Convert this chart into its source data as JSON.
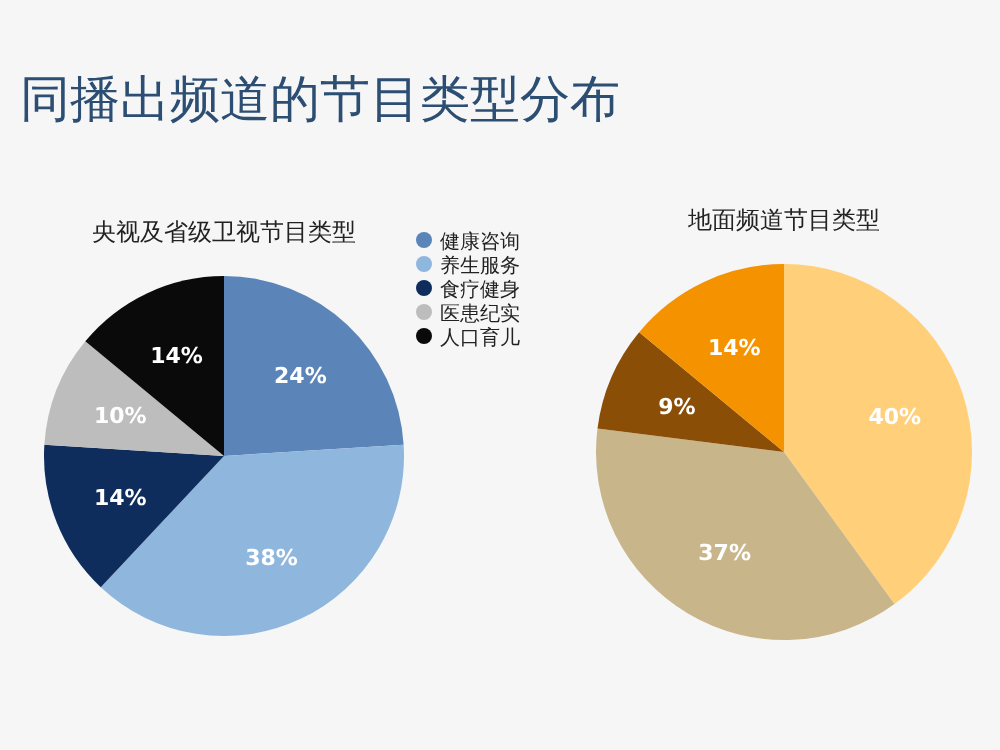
{
  "chart_data": [
    {
      "type": "pie",
      "title": "同播出频道的节目类型分布",
      "subtitle": "央视及省级卫视节目类型",
      "categories": [
        "健康咨询",
        "养生服务",
        "食疗健身",
        "医患纪实",
        "人口育儿"
      ],
      "values": [
        24,
        38,
        14,
        10,
        14
      ],
      "colors": [
        "#5b84b8",
        "#8fb6dd",
        "#0f2d5c",
        "#bdbdbd",
        "#0a0a0a"
      ],
      "value_labels": [
        "24%",
        "38%",
        "14%",
        "10%",
        "14%"
      ],
      "legend": "right"
    },
    {
      "type": "pie",
      "title": "地面频道节目类型",
      "categories": [
        null,
        null,
        null,
        null
      ],
      "values": [
        40,
        37,
        9,
        14
      ],
      "colors": [
        "#ffcf7a",
        "#c8b58a",
        "#8a4e06",
        "#f59200"
      ],
      "value_labels": [
        "40%",
        "37%",
        "9%",
        "14%"
      ]
    }
  ]
}
